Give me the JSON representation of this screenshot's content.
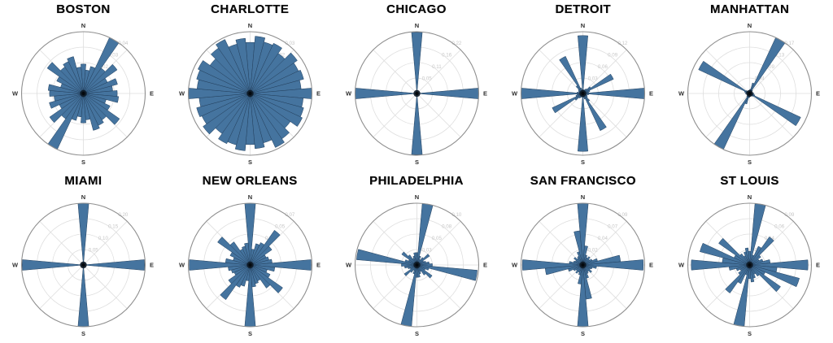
{
  "page": {
    "background": "#ffffff",
    "description": "Grid of ten polar street-orientation rose charts"
  },
  "compass": {
    "n": "N",
    "e": "E",
    "s": "S",
    "w": "W"
  },
  "style": {
    "bar_fill": "#45749f",
    "bar_edge": "#23405e",
    "grid_color": "#dedede",
    "outer_circle_color": "#8e8e8e",
    "tick_label_color": "#c7c7c7",
    "compass_label_color": "#2f2f2f",
    "title_color": "#0a0a0a",
    "center_dot_color": "#0e1a26"
  },
  "chart_data": [
    {
      "type": "rose",
      "title": "BOSTON",
      "bin_width_deg": 10,
      "start_bearing_deg": 0,
      "rmax": 0.042,
      "radial_tick_labels": [
        "0.01",
        "0.02",
        "0.03",
        "0.04"
      ],
      "legend": "none",
      "grid": true,
      "values": [
        0.02,
        0.016,
        0.019,
        0.042,
        0.021,
        0.028,
        0.018,
        0.024,
        0.02,
        0.023,
        0.024,
        0.016,
        0.02,
        0.03,
        0.022,
        0.024,
        0.026,
        0.018,
        0.02,
        0.016,
        0.019,
        0.042,
        0.021,
        0.028,
        0.018,
        0.024,
        0.02,
        0.023,
        0.024,
        0.016,
        0.02,
        0.03,
        0.022,
        0.024,
        0.026,
        0.018
      ]
    },
    {
      "type": "rose",
      "title": "CHARLOTTE",
      "bin_width_deg": 10,
      "start_bearing_deg": 0,
      "rmax": 0.029,
      "radial_tick_labels": [
        "0.01",
        "0.02",
        "0.02",
        "0.03"
      ],
      "legend": "none",
      "grid": true,
      "values": [
        0.024,
        0.027,
        0.025,
        0.026,
        0.023,
        0.027,
        0.025,
        0.026,
        0.024,
        0.029,
        0.025,
        0.026,
        0.027,
        0.023,
        0.026,
        0.028,
        0.024,
        0.026,
        0.024,
        0.027,
        0.025,
        0.026,
        0.023,
        0.027,
        0.025,
        0.026,
        0.024,
        0.029,
        0.025,
        0.026,
        0.027,
        0.023,
        0.026,
        0.028,
        0.024,
        0.026
      ]
    },
    {
      "type": "rose",
      "title": "CHICAGO",
      "bin_width_deg": 10,
      "start_bearing_deg": 0,
      "rmax": 0.217,
      "radial_tick_labels": [
        "0.05",
        "0.11",
        "0.16",
        "0.22"
      ],
      "legend": "none",
      "grid": true,
      "values": [
        0.215,
        0.004,
        0.003,
        0.003,
        0.004,
        0.003,
        0.003,
        0.004,
        0.006,
        0.217,
        0.006,
        0.003,
        0.003,
        0.004,
        0.003,
        0.003,
        0.003,
        0.004,
        0.215,
        0.004,
        0.003,
        0.003,
        0.004,
        0.003,
        0.003,
        0.004,
        0.006,
        0.217,
        0.006,
        0.003,
        0.003,
        0.004,
        0.003,
        0.003,
        0.003,
        0.004
      ]
    },
    {
      "type": "rose",
      "title": "DETROIT",
      "bin_width_deg": 10,
      "start_bearing_deg": 0,
      "rmax": 0.128,
      "radial_tick_labels": [
        "0.03",
        "0.06",
        "0.09",
        "0.12"
      ],
      "legend": "none",
      "grid": true,
      "values": [
        0.12,
        0.008,
        0.006,
        0.01,
        0.012,
        0.02,
        0.07,
        0.015,
        0.012,
        0.128,
        0.012,
        0.008,
        0.01,
        0.012,
        0.02,
        0.085,
        0.012,
        0.008,
        0.12,
        0.008,
        0.006,
        0.01,
        0.012,
        0.02,
        0.07,
        0.015,
        0.012,
        0.128,
        0.012,
        0.008,
        0.01,
        0.012,
        0.02,
        0.085,
        0.012,
        0.008
      ]
    },
    {
      "type": "rose",
      "title": "MANHATTAN",
      "bin_width_deg": 10,
      "start_bearing_deg": 0,
      "rmax": 0.17,
      "radial_tick_labels": [
        "0.04",
        "0.09",
        "0.13",
        "0.17"
      ],
      "legend": "none",
      "grid": true,
      "values": [
        0.01,
        0.012,
        0.03,
        0.17,
        0.012,
        0.006,
        0.008,
        0.006,
        0.008,
        0.012,
        0.01,
        0.015,
        0.155,
        0.012,
        0.006,
        0.008,
        0.006,
        0.008,
        0.01,
        0.012,
        0.03,
        0.17,
        0.012,
        0.006,
        0.008,
        0.006,
        0.008,
        0.012,
        0.01,
        0.015,
        0.155,
        0.012,
        0.006,
        0.008,
        0.006,
        0.008
      ]
    },
    {
      "type": "rose",
      "title": "MIAMI",
      "bin_width_deg": 10,
      "start_bearing_deg": 0,
      "rmax": 0.2,
      "radial_tick_labels": [
        "0.05",
        "0.10",
        "0.15",
        "0.20"
      ],
      "legend": "none",
      "grid": true,
      "values": [
        0.2,
        0.005,
        0.004,
        0.005,
        0.008,
        0.005,
        0.004,
        0.005,
        0.006,
        0.198,
        0.006,
        0.004,
        0.005,
        0.008,
        0.005,
        0.004,
        0.005,
        0.006,
        0.2,
        0.005,
        0.004,
        0.005,
        0.008,
        0.005,
        0.004,
        0.005,
        0.006,
        0.198,
        0.006,
        0.004,
        0.005,
        0.008,
        0.005,
        0.004,
        0.005,
        0.006
      ]
    },
    {
      "type": "rose",
      "title": "NEW ORLEANS",
      "bin_width_deg": 10,
      "start_bearing_deg": 0,
      "rmax": 0.07,
      "radial_tick_labels": [
        "0.02",
        "0.03",
        "0.05",
        "0.07"
      ],
      "legend": "none",
      "grid": true,
      "values": [
        0.07,
        0.018,
        0.025,
        0.028,
        0.048,
        0.03,
        0.02,
        0.022,
        0.025,
        0.069,
        0.028,
        0.02,
        0.025,
        0.045,
        0.032,
        0.02,
        0.022,
        0.025,
        0.07,
        0.018,
        0.025,
        0.028,
        0.048,
        0.03,
        0.02,
        0.022,
        0.025,
        0.069,
        0.028,
        0.02,
        0.025,
        0.045,
        0.032,
        0.02,
        0.022,
        0.025
      ]
    },
    {
      "type": "rose",
      "title": "PHILADELPHIA",
      "bin_width_deg": 10,
      "start_bearing_deg": 0,
      "rmax": 0.1,
      "radial_tick_labels": [
        "0.03",
        "0.05",
        "0.08",
        "0.10"
      ],
      "legend": "none",
      "grid": true,
      "values": [
        0.02,
        0.1,
        0.015,
        0.01,
        0.015,
        0.025,
        0.012,
        0.015,
        0.02,
        0.025,
        0.098,
        0.02,
        0.015,
        0.03,
        0.02,
        0.012,
        0.015,
        0.02,
        0.02,
        0.1,
        0.015,
        0.01,
        0.015,
        0.025,
        0.012,
        0.015,
        0.02,
        0.025,
        0.098,
        0.02,
        0.015,
        0.03,
        0.02,
        0.012,
        0.015,
        0.02
      ]
    },
    {
      "type": "rose",
      "title": "SAN FRANCISCO",
      "bin_width_deg": 10,
      "start_bearing_deg": 0,
      "rmax": 0.09,
      "radial_tick_labels": [
        "0.02",
        "0.04",
        "0.07",
        "0.09"
      ],
      "legend": "none",
      "grid": true,
      "values": [
        0.09,
        0.028,
        0.015,
        0.012,
        0.015,
        0.012,
        0.015,
        0.022,
        0.055,
        0.088,
        0.02,
        0.014,
        0.012,
        0.016,
        0.012,
        0.014,
        0.02,
        0.05,
        0.09,
        0.028,
        0.015,
        0.012,
        0.015,
        0.012,
        0.015,
        0.022,
        0.055,
        0.088,
        0.02,
        0.014,
        0.012,
        0.016,
        0.012,
        0.014,
        0.02,
        0.05
      ]
    },
    {
      "type": "rose",
      "title": "ST LOUIS",
      "bin_width_deg": 10,
      "start_bearing_deg": 0,
      "rmax": 0.09,
      "radial_tick_labels": [
        "0.02",
        "0.04",
        "0.06",
        "0.09"
      ],
      "legend": "none",
      "grid": true,
      "values": [
        0.02,
        0.09,
        0.015,
        0.03,
        0.05,
        0.02,
        0.015,
        0.02,
        0.03,
        0.085,
        0.04,
        0.075,
        0.025,
        0.055,
        0.02,
        0.015,
        0.02,
        0.025,
        0.02,
        0.09,
        0.015,
        0.03,
        0.05,
        0.02,
        0.015,
        0.02,
        0.03,
        0.085,
        0.04,
        0.075,
        0.025,
        0.055,
        0.02,
        0.015,
        0.02,
        0.025
      ]
    }
  ]
}
